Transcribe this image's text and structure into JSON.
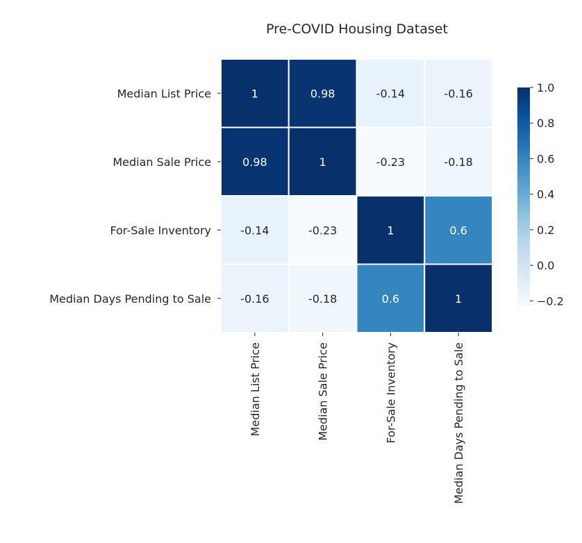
{
  "chart_data": {
    "type": "heatmap",
    "title": "Pre-COVID Housing Dataset",
    "row_labels": [
      "Median List Price",
      "Median Sale Price",
      "For-Sale Inventory",
      "Median Days Pending to Sale"
    ],
    "col_labels": [
      "Median List Price",
      "Median Sale Price",
      "For-Sale Inventory",
      "Median Days Pending to Sale"
    ],
    "values": [
      [
        1,
        0.98,
        -0.14,
        -0.16
      ],
      [
        0.98,
        1,
        -0.23,
        -0.18
      ],
      [
        -0.14,
        -0.23,
        1,
        0.6
      ],
      [
        -0.16,
        -0.18,
        0.6,
        1
      ]
    ],
    "cell_labels": [
      [
        "1",
        "0.98",
        "-0.14",
        "-0.16"
      ],
      [
        "0.98",
        "1",
        "-0.23",
        "-0.18"
      ],
      [
        "-0.14",
        "-0.23",
        "1",
        "0.6"
      ],
      [
        "-0.16",
        "-0.18",
        "0.6",
        "1"
      ]
    ],
    "colormap": "Blues",
    "color_range": [
      -0.23,
      1
    ],
    "colorbar": {
      "ticks": [
        1.0,
        0.8,
        0.6,
        0.4,
        0.2,
        0.0,
        -0.2
      ],
      "tick_labels": [
        "1.0",
        "0.8",
        "0.6",
        "0.4",
        "0.2",
        "0.0",
        "−0.2"
      ],
      "position": "right"
    },
    "cell_gridlines": "white",
    "colors": {
      "low": "#f7fbff",
      "high": "#08306b",
      "text_on_dark": "#ffffff",
      "text_on_light": "#262626"
    }
  }
}
